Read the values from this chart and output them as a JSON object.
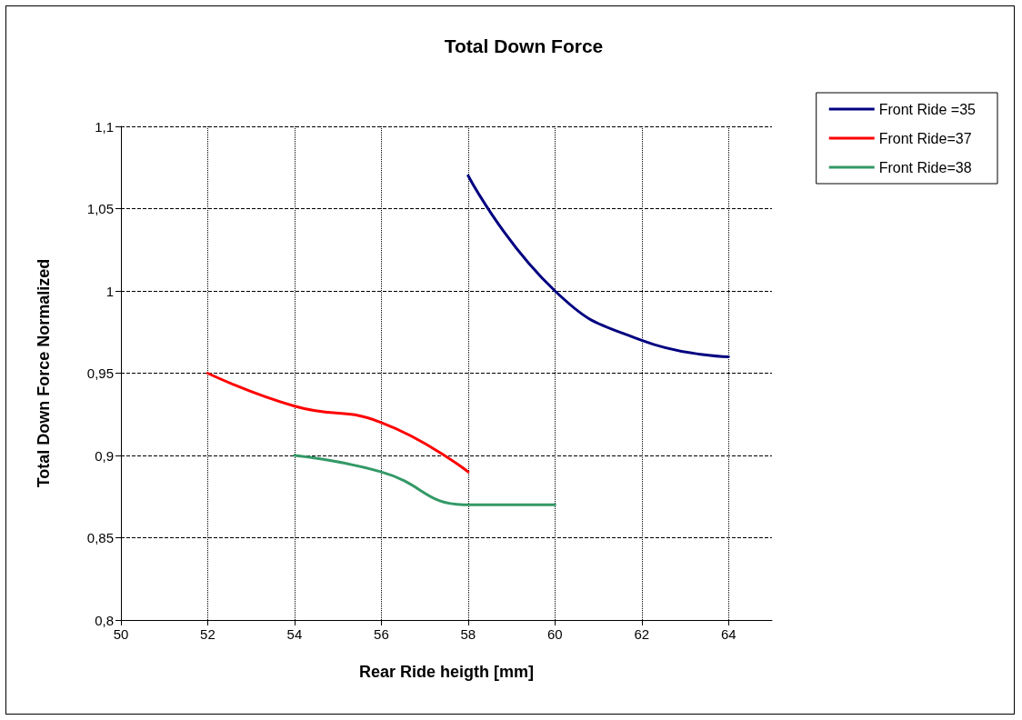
{
  "chart_data": {
    "type": "line",
    "title": "Total Down Force",
    "xlabel": "Rear Ride heigth [mm]",
    "ylabel": "Total Down Force Normalized",
    "xlim": [
      50,
      65
    ],
    "xticks": [
      50,
      52,
      54,
      56,
      58,
      60,
      62,
      64
    ],
    "ylim": [
      0.8,
      1.1
    ],
    "yticks": [
      {
        "value": 0.8,
        "label": "0,8"
      },
      {
        "value": 0.85,
        "label": "0,85"
      },
      {
        "value": 0.9,
        "label": "0,9"
      },
      {
        "value": 0.95,
        "label": "0,95"
      },
      {
        "value": 1,
        "label": "1"
      },
      {
        "value": 1.05,
        "label": "1,05"
      },
      {
        "value": 1.1,
        "label": "1,1"
      }
    ],
    "grid": true,
    "legend": "top right",
    "marker": "none",
    "line_style": "solid",
    "series": [
      {
        "name": "Front Ride =35",
        "color": "#000080",
        "x": [
          58,
          60,
          62,
          64
        ],
        "values": [
          1.07,
          1.0,
          0.97,
          0.96
        ]
      },
      {
        "name": "Front Ride=37",
        "color": "#ff0000",
        "x": [
          52,
          54,
          56,
          58
        ],
        "values": [
          0.95,
          0.93,
          0.92,
          0.89
        ]
      },
      {
        "name": "Front Ride=38",
        "color": "#339966",
        "x": [
          54,
          56,
          58,
          60
        ],
        "values": [
          0.9,
          0.89,
          0.87,
          0.87
        ]
      }
    ]
  }
}
